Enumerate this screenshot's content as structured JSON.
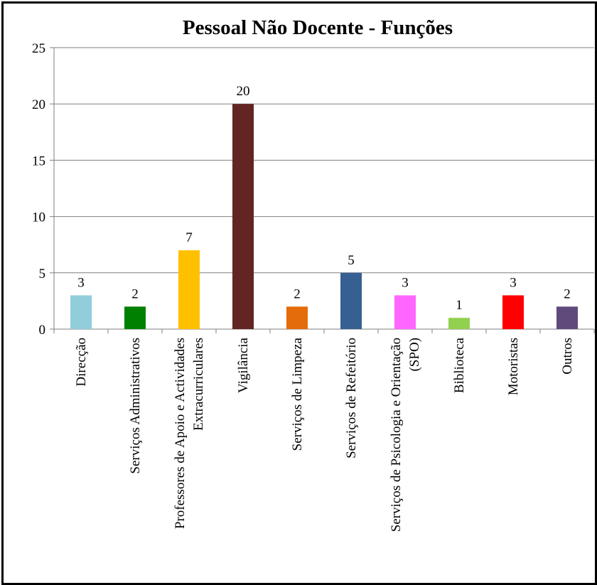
{
  "chart_data": {
    "type": "bar",
    "title": "Pessoal Não Docente - Funções",
    "xlabel": "",
    "ylabel": "",
    "ylim": [
      0,
      25
    ],
    "yticks": [
      "0",
      "5",
      "10",
      "15",
      "20",
      "25"
    ],
    "grid": true,
    "legend": "none",
    "categories": [
      [
        "Direcção"
      ],
      [
        "Serviços Administrativos"
      ],
      [
        "Professores de Apoio e Actividades",
        "Extracurriculares"
      ],
      [
        "Vigilância"
      ],
      [
        "Serviços de Limpeza"
      ],
      [
        "Serviços de Refeitório"
      ],
      [
        "Serviços de Psicologia e Orientação",
        "(SPO)"
      ],
      [
        "Biblioteca"
      ],
      [
        "Motoristas"
      ],
      [
        "Outros"
      ]
    ],
    "values": [
      3,
      2,
      7,
      20,
      2,
      5,
      3,
      1,
      3,
      2
    ],
    "data_labels": [
      "3",
      "2",
      "7",
      "20",
      "2",
      "5",
      "3",
      "1",
      "3",
      "2"
    ],
    "colors": [
      "#92CDDC",
      "#008000",
      "#FFC000",
      "#632523",
      "#E46C0A",
      "#376092",
      "#FF66FF",
      "#92D050",
      "#FF0000",
      "#604A7B"
    ]
  }
}
